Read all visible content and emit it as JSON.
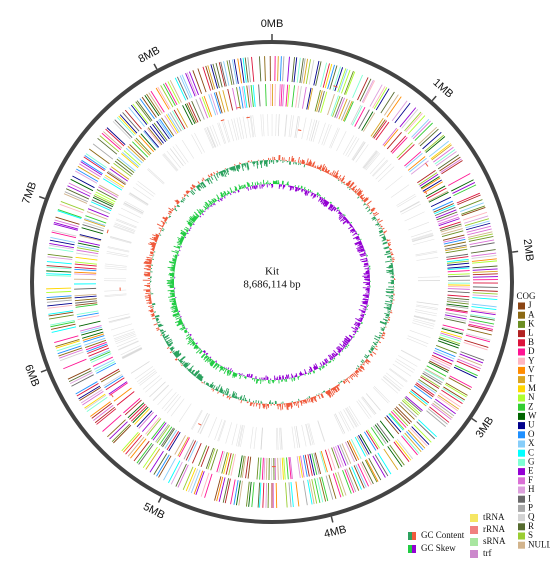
{
  "tick_labels": [
    "0MB",
    "1MB",
    "2MB",
    "3MB",
    "4MB",
    "5MB",
    "6MB",
    "7MB",
    "8MB"
  ],
  "center": {
    "name": "Kit",
    "size": "8,686,114 bp"
  },
  "cog_legend": {
    "title": "COG",
    "items": [
      {
        "label": "J",
        "color": "#8b4513"
      },
      {
        "label": "A",
        "color": "#8b6914"
      },
      {
        "label": "K",
        "color": "#6b8e23"
      },
      {
        "label": "L",
        "color": "#b22222"
      },
      {
        "label": "B",
        "color": "#dc143c"
      },
      {
        "label": "D",
        "color": "#ff1493"
      },
      {
        "label": "Y",
        "color": "#ffb6c1"
      },
      {
        "label": "V",
        "color": "#ff8c00"
      },
      {
        "label": "T",
        "color": "#daa520"
      },
      {
        "label": "M",
        "color": "#ffd700"
      },
      {
        "label": "N",
        "color": "#adff2f"
      },
      {
        "label": "Z",
        "color": "#32cd32"
      },
      {
        "label": "W",
        "color": "#006400"
      },
      {
        "label": "U",
        "color": "#00008b"
      },
      {
        "label": "O",
        "color": "#1e90ff"
      },
      {
        "label": "X",
        "color": "#87cefa"
      },
      {
        "label": "C",
        "color": "#00ffff"
      },
      {
        "label": "G",
        "color": "#7fffd4"
      },
      {
        "label": "E",
        "color": "#9400d3"
      },
      {
        "label": "F",
        "color": "#da70d6"
      },
      {
        "label": "H",
        "color": "#dda0dd"
      },
      {
        "label": "I",
        "color": "#696969"
      },
      {
        "label": "P",
        "color": "#a9a9a9"
      },
      {
        "label": "Q",
        "color": "#d3d3d3"
      },
      {
        "label": "R",
        "color": "#556b2f"
      },
      {
        "label": "S",
        "color": "#9acd32"
      },
      {
        "label": "NULL",
        "color": "#d2b48c"
      }
    ]
  },
  "track_legend": [
    {
      "label": "GC Content",
      "colors": [
        "#2ca25f",
        "#ef5a3c"
      ]
    },
    {
      "label": "GC Skew",
      "colors": [
        "#22cc44",
        "#9400d3"
      ]
    }
  ],
  "rna_legend": [
    {
      "label": "tRNA",
      "color": "#f5e663"
    },
    {
      "label": "rRNA",
      "color": "#f08080"
    },
    {
      "label": "sRNA",
      "color": "#a8e6a0"
    },
    {
      "label": "trf",
      "color": "#cc88cc"
    }
  ]
}
